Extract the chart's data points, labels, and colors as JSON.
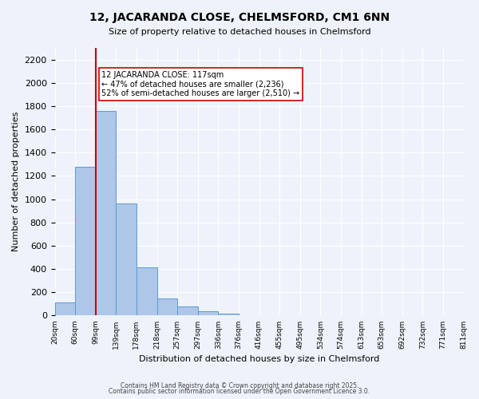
{
  "title": "12, JACARANDA CLOSE, CHELMSFORD, CM1 6NN",
  "subtitle": "Size of property relative to detached houses in Chelmsford",
  "xlabel": "Distribution of detached houses by size in Chelmsford",
  "ylabel": "Number of detached properties",
  "bar_values": [
    110,
    1280,
    1760,
    960,
    415,
    148,
    75,
    38,
    20,
    0,
    0,
    0,
    0,
    0,
    0,
    0,
    0,
    0,
    0,
    0
  ],
  "bin_labels": [
    "20sqm",
    "60sqm",
    "99sqm",
    "139sqm",
    "178sqm",
    "218sqm",
    "257sqm",
    "297sqm",
    "336sqm",
    "376sqm",
    "416sqm",
    "455sqm",
    "495sqm",
    "534sqm",
    "574sqm",
    "613sqm",
    "653sqm",
    "692sqm",
    "732sqm",
    "771sqm",
    "811sqm"
  ],
  "bar_color": "#aec6e8",
  "bar_edge_color": "#5b9bd5",
  "vline_x": 2,
  "vline_color": "#cc0000",
  "annotation_text": "12 JACARANDA CLOSE: 117sqm\n← 47% of detached houses are smaller (2,236)\n52% of semi-detached houses are larger (2,510) →",
  "annotation_box_color": "#ffffff",
  "annotation_box_edge": "#cc0000",
  "ylim": [
    0,
    2300
  ],
  "yticks": [
    0,
    200,
    400,
    600,
    800,
    1000,
    1200,
    1400,
    1600,
    1800,
    2000,
    2200
  ],
  "footer_text1": "Contains HM Land Registry data © Crown copyright and database right 2025.",
  "footer_text2": "Contains public sector information licensed under the Open Government Licence 3.0.",
  "bg_color": "#eef3fb",
  "plot_bg_color": "#eef3fb"
}
